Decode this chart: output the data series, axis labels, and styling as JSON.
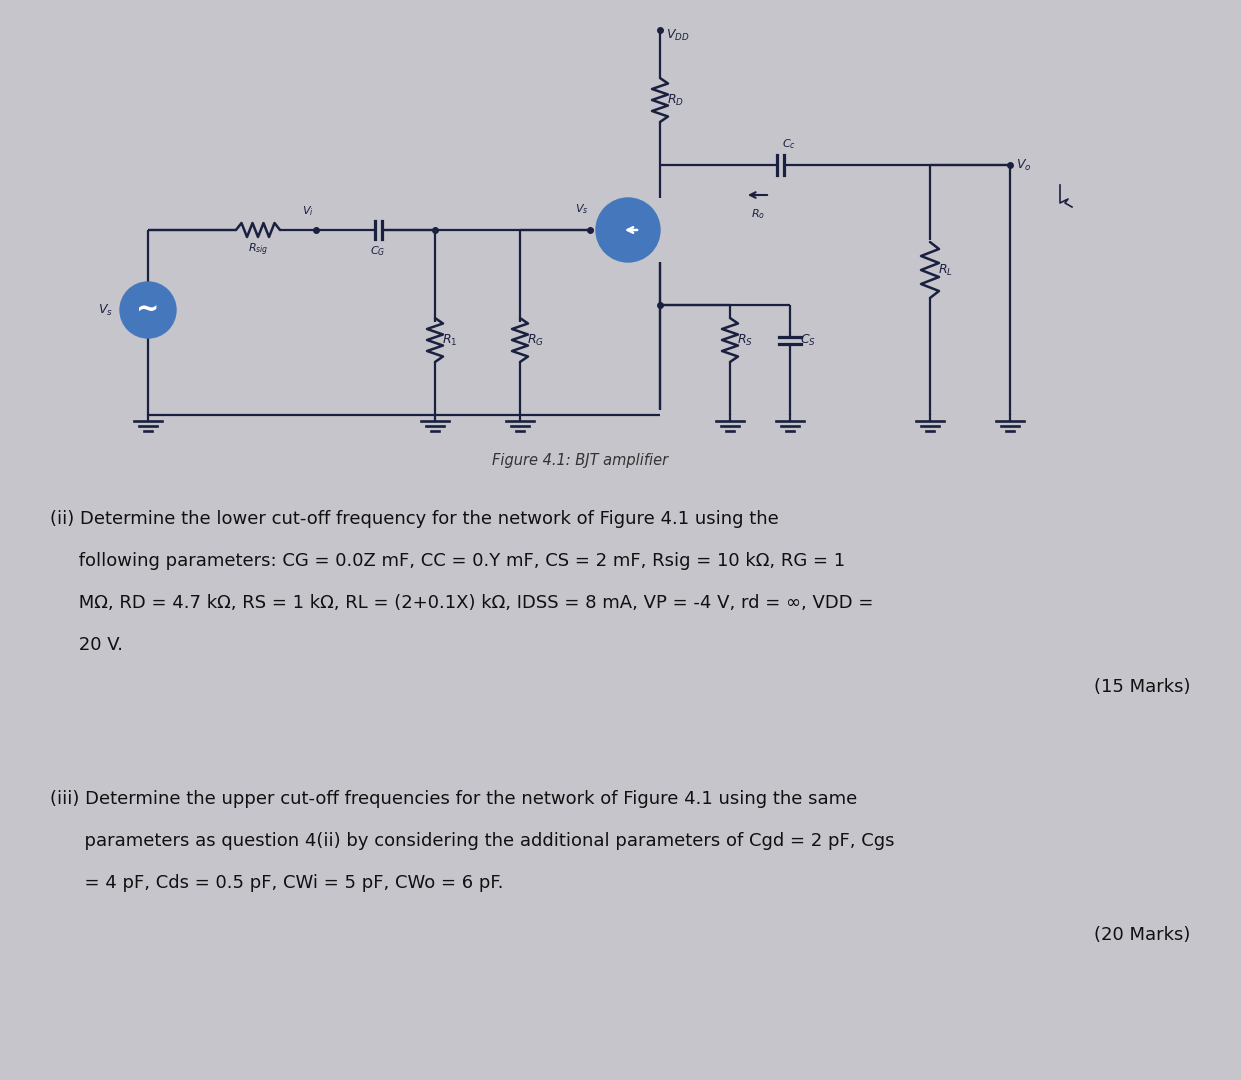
{
  "bg_color": "#c5c5cb",
  "text_color": "#1a1a2e",
  "dark_blue": "#1a2040",
  "mid_blue": "#2a3560",
  "highlight_blue": "#4477bb",
  "fig_caption": "Figure 4.1: BJT amplifier",
  "q2_line1": "(ii) Determine the lower cut-off frequency for the network of Figure 4.1 using the",
  "q2_line2": "     following parameters: CG = 0.0Z mF, CC = 0.Y mF, CS = 2 mF, Rsig = 10 kΩ, RG = 1",
  "q2_line3": "     MΩ, RD = 4.7 kΩ, RS = 1 kΩ, RL = (2+0.1X) kΩ, IDSS = 8 mA, VP = -4 V, rd = ∞, VDD =",
  "q2_line4": "     20 V.",
  "q2_marks": "(15 Marks)",
  "q3_line1": "(iii) Determine the upper cut-off frequencies for the network of Figure 4.1 using the same",
  "q3_line2": "      parameters as question 4(ii) by considering the additional parameters of Cgd = 2 pF, Cgs",
  "q3_line3": "      = 4 pF, Cds = 0.5 pF, CWi = 5 pF, CWo = 6 pF.",
  "q3_marks": "(20 Marks)"
}
